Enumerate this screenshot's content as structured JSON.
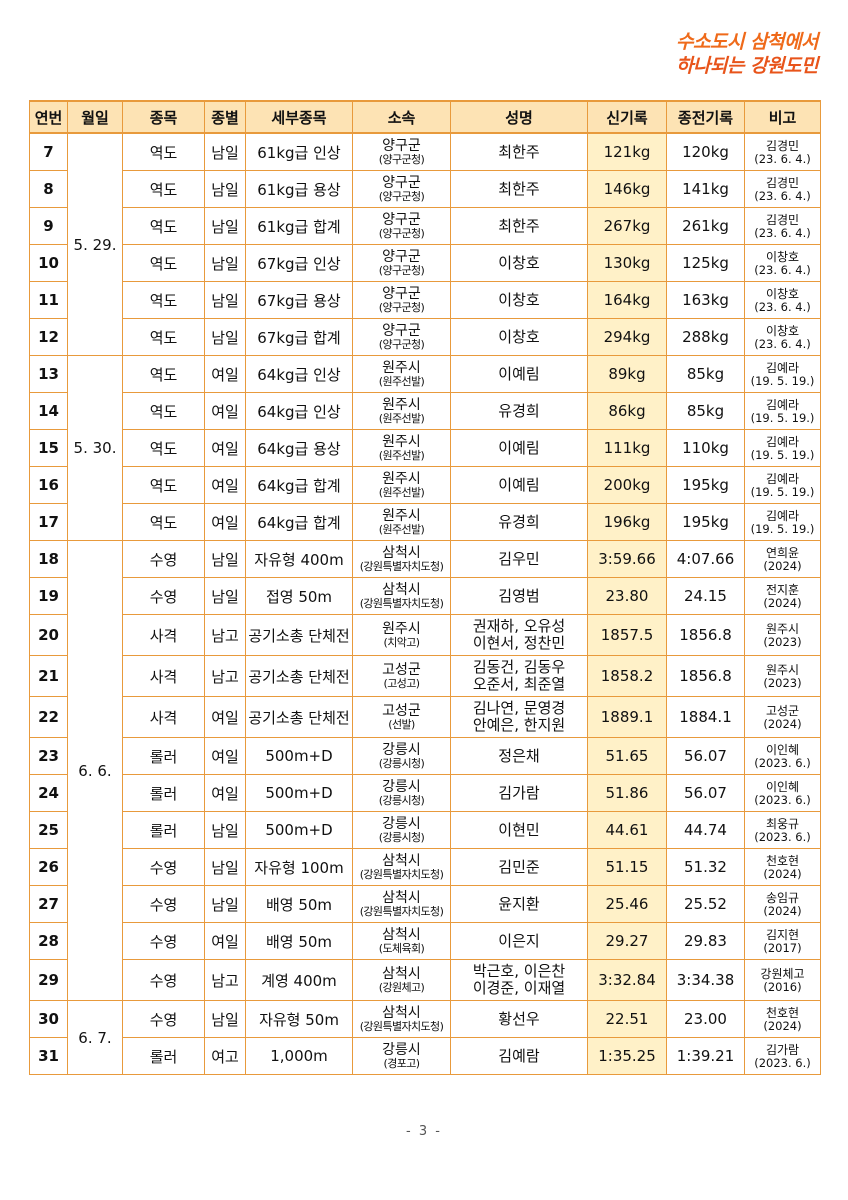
{
  "slogan": {
    "line1": "수소도시 삼척에서",
    "line2": "하나되는 강원도민"
  },
  "columns": [
    "연번",
    "월일",
    "종목",
    "종별",
    "세부종목",
    "소속",
    "성명",
    "신기록",
    "종전기록",
    "비고"
  ],
  "rows": [
    {
      "no": "7",
      "date": "5. 29.",
      "event": "역도",
      "cls": "남일",
      "detail": "61kg급 인상",
      "aff": "양구군",
      "aff_sub": "(양구군청)",
      "name": [
        "최한주"
      ],
      "new": "121kg",
      "prev": "120kg",
      "note": "김경민",
      "note_sub": "(23. 6. 4.)"
    },
    {
      "no": "8",
      "date": "",
      "event": "역도",
      "cls": "남일",
      "detail": "61kg급 용상",
      "aff": "양구군",
      "aff_sub": "(양구군청)",
      "name": [
        "최한주"
      ],
      "new": "146kg",
      "prev": "141kg",
      "note": "김경민",
      "note_sub": "(23. 6. 4.)"
    },
    {
      "no": "9",
      "date": "",
      "event": "역도",
      "cls": "남일",
      "detail": "61kg급 합계",
      "aff": "양구군",
      "aff_sub": "(양구군청)",
      "name": [
        "최한주"
      ],
      "new": "267kg",
      "prev": "261kg",
      "note": "김경민",
      "note_sub": "(23. 6. 4.)"
    },
    {
      "no": "10",
      "date": "",
      "event": "역도",
      "cls": "남일",
      "detail": "67kg급 인상",
      "aff": "양구군",
      "aff_sub": "(양구군청)",
      "name": [
        "이창호"
      ],
      "new": "130kg",
      "prev": "125kg",
      "note": "이창호",
      "note_sub": "(23. 6. 4.)"
    },
    {
      "no": "11",
      "date": "",
      "event": "역도",
      "cls": "남일",
      "detail": "67kg급 용상",
      "aff": "양구군",
      "aff_sub": "(양구군청)",
      "name": [
        "이창호"
      ],
      "new": "164kg",
      "prev": "163kg",
      "note": "이창호",
      "note_sub": "(23. 6. 4.)"
    },
    {
      "no": "12",
      "date": "",
      "event": "역도",
      "cls": "남일",
      "detail": "67kg급 합계",
      "aff": "양구군",
      "aff_sub": "(양구군청)",
      "name": [
        "이창호"
      ],
      "new": "294kg",
      "prev": "288kg",
      "note": "이창호",
      "note_sub": "(23. 6. 4.)"
    },
    {
      "no": "13",
      "date": "5. 30.",
      "event": "역도",
      "cls": "여일",
      "detail": "64kg급 인상",
      "aff": "원주시",
      "aff_sub": "(원주선발)",
      "name": [
        "이예림"
      ],
      "new": "89kg",
      "prev": "85kg",
      "note": "김예라",
      "note_sub": "(19. 5. 19.)"
    },
    {
      "no": "14",
      "date": "",
      "event": "역도",
      "cls": "여일",
      "detail": "64kg급 인상",
      "aff": "원주시",
      "aff_sub": "(원주선발)",
      "name": [
        "유경희"
      ],
      "new": "86kg",
      "prev": "85kg",
      "note": "김예라",
      "note_sub": "(19. 5. 19.)"
    },
    {
      "no": "15",
      "date": "",
      "event": "역도",
      "cls": "여일",
      "detail": "64kg급 용상",
      "aff": "원주시",
      "aff_sub": "(원주선발)",
      "name": [
        "이예림"
      ],
      "new": "111kg",
      "prev": "110kg",
      "note": "김예라",
      "note_sub": "(19. 5. 19.)"
    },
    {
      "no": "16",
      "date": "",
      "event": "역도",
      "cls": "여일",
      "detail": "64kg급 합계",
      "aff": "원주시",
      "aff_sub": "(원주선발)",
      "name": [
        "이예림"
      ],
      "new": "200kg",
      "prev": "195kg",
      "note": "김예라",
      "note_sub": "(19. 5. 19.)"
    },
    {
      "no": "17",
      "date": "",
      "event": "역도",
      "cls": "여일",
      "detail": "64kg급 합계",
      "aff": "원주시",
      "aff_sub": "(원주선발)",
      "name": [
        "유경희"
      ],
      "new": "196kg",
      "prev": "195kg",
      "note": "김예라",
      "note_sub": "(19. 5. 19.)"
    },
    {
      "no": "18",
      "date": "6. 6.",
      "event": "수영",
      "cls": "남일",
      "detail": "자유형 400m",
      "aff": "삼척시",
      "aff_sub": "(강원특별자치도청)",
      "name": [
        "김우민"
      ],
      "new": "3:59.66",
      "prev": "4:07.66",
      "note": "연희윤",
      "note_sub": "(2024)"
    },
    {
      "no": "19",
      "date": "",
      "event": "수영",
      "cls": "남일",
      "detail": "접영 50m",
      "aff": "삼척시",
      "aff_sub": "(강원특별자치도청)",
      "name": [
        "김영범"
      ],
      "new": "23.80",
      "prev": "24.15",
      "note": "전지훈",
      "note_sub": "(2024)"
    },
    {
      "no": "20",
      "date": "",
      "event": "사격",
      "cls": "남고",
      "detail": "공기소총 단체전",
      "aff": "원주시",
      "aff_sub": "(치악고)",
      "name": [
        "권재하, 오유성",
        "이현서, 정찬민"
      ],
      "new": "1857.5",
      "prev": "1856.8",
      "note": "원주시",
      "note_sub": "(2023)"
    },
    {
      "no": "21",
      "date": "",
      "event": "사격",
      "cls": "남고",
      "detail": "공기소총 단체전",
      "aff": "고성군",
      "aff_sub": "(고성고)",
      "name": [
        "김동건, 김동우",
        "오준서, 최준열"
      ],
      "new": "1858.2",
      "prev": "1856.8",
      "note": "원주시",
      "note_sub": "(2023)"
    },
    {
      "no": "22",
      "date": "",
      "event": "사격",
      "cls": "여일",
      "detail": "공기소총 단체전",
      "aff": "고성군",
      "aff_sub": "(선발)",
      "name": [
        "김나연, 문영경",
        "안예은, 한지원"
      ],
      "new": "1889.1",
      "prev": "1884.1",
      "note": "고성군",
      "note_sub": "(2024)"
    },
    {
      "no": "23",
      "date": "",
      "event": "롤러",
      "cls": "여일",
      "detail": "500m+D",
      "aff": "강릉시",
      "aff_sub": "(강릉시청)",
      "name": [
        "정은채"
      ],
      "new": "51.65",
      "prev": "56.07",
      "note": "이인혜",
      "note_sub": "(2023. 6.)"
    },
    {
      "no": "24",
      "date": "",
      "event": "롤러",
      "cls": "여일",
      "detail": "500m+D",
      "aff": "강릉시",
      "aff_sub": "(강릉시청)",
      "name": [
        "김가람"
      ],
      "new": "51.86",
      "prev": "56.07",
      "note": "이인혜",
      "note_sub": "(2023. 6.)"
    },
    {
      "no": "25",
      "date": "",
      "event": "롤러",
      "cls": "남일",
      "detail": "500m+D",
      "aff": "강릉시",
      "aff_sub": "(강릉시청)",
      "name": [
        "이현민"
      ],
      "new": "44.61",
      "prev": "44.74",
      "note": "최웅규",
      "note_sub": "(2023. 6.)"
    },
    {
      "no": "26",
      "date": "",
      "event": "수영",
      "cls": "남일",
      "detail": "자유형 100m",
      "aff": "삼척시",
      "aff_sub": "(강원특별자치도청)",
      "name": [
        "김민준"
      ],
      "new": "51.15",
      "prev": "51.32",
      "note": "천호현",
      "note_sub": "(2024)"
    },
    {
      "no": "27",
      "date": "",
      "event": "수영",
      "cls": "남일",
      "detail": "배영 50m",
      "aff": "삼척시",
      "aff_sub": "(강원특별자치도청)",
      "name": [
        "윤지환"
      ],
      "new": "25.46",
      "prev": "25.52",
      "note": "송임규",
      "note_sub": "(2024)"
    },
    {
      "no": "28",
      "date": "",
      "event": "수영",
      "cls": "여일",
      "detail": "배영 50m",
      "aff": "삼척시",
      "aff_sub": "(도체육회)",
      "name": [
        "이은지"
      ],
      "new": "29.27",
      "prev": "29.83",
      "note": "김지현",
      "note_sub": "(2017)"
    },
    {
      "no": "29",
      "date": "",
      "event": "수영",
      "cls": "남고",
      "detail": "계영 400m",
      "aff": "삼척시",
      "aff_sub": "(강원체고)",
      "name": [
        "박근호, 이은찬",
        "이경준, 이재열"
      ],
      "new": "3:32.84",
      "prev": "3:34.38",
      "note": "강원체고",
      "note_sub": "(2016)"
    },
    {
      "no": "30",
      "date": "6. 7.",
      "event": "수영",
      "cls": "남일",
      "detail": "자유형 50m",
      "aff": "삼척시",
      "aff_sub": "(강원특별자치도청)",
      "name": [
        "황선우"
      ],
      "new": "22.51",
      "prev": "23.00",
      "note": "천호현",
      "note_sub": "(2024)"
    },
    {
      "no": "31",
      "date": "",
      "event": "롤러",
      "cls": "여고",
      "detail": "1,000m",
      "aff": "강릉시",
      "aff_sub": "(경포고)",
      "name": [
        "김예람"
      ],
      "new": "1:35.25",
      "prev": "1:39.21",
      "note": "김가람",
      "note_sub": "(2023. 6.)"
    }
  ],
  "page_number": "- 3 -"
}
